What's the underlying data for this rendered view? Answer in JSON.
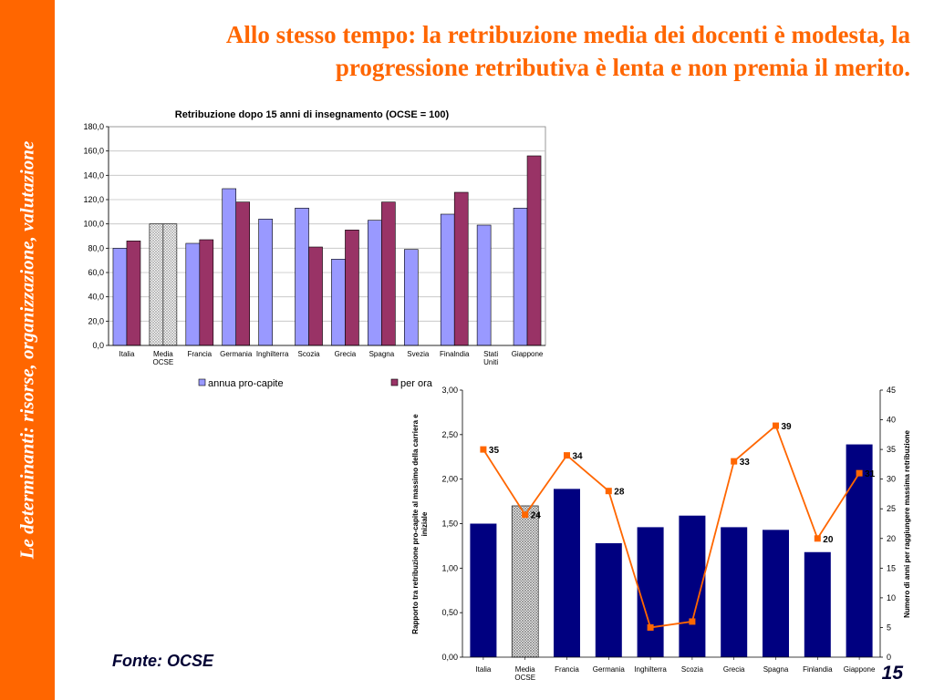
{
  "sidebar": {
    "text": "Le determinanti: risorse, organizzazione, valutazione"
  },
  "slide": {
    "title": "Allo stesso tempo: la retribuzione media dei docenti è modesta, la progressione retributiva è lenta e non premia il merito.",
    "source": "Fonte: OCSE",
    "page_number": "15"
  },
  "colors": {
    "sidebar": "#ff6600",
    "title": "#ff6600",
    "series_a": "#9999ff",
    "series_b": "#993366",
    "bar2": "#000080",
    "line2": "#ff6600"
  },
  "chart_data": [
    {
      "type": "bar",
      "title": "Retribuzione dopo 15 anni di insegnamento (OCSE = 100)",
      "categories": [
        "Italia",
        "Media OCSE",
        "Francia",
        "Germania",
        "Inghilterra",
        "Scozia",
        "Grecia",
        "Spagna",
        "Svezia",
        "Finalndia",
        "Stati Uniti",
        "Giappone"
      ],
      "series": [
        {
          "name": "annua pro-capite",
          "values": [
            80,
            100,
            84,
            129,
            104,
            113,
            71,
            103,
            79,
            108,
            99,
            113
          ]
        },
        {
          "name": "per ora",
          "values": [
            86,
            100,
            87,
            118,
            null,
            81,
            95,
            118,
            null,
            126,
            null,
            156
          ]
        }
      ],
      "yticks": [
        "0,0",
        "20,0",
        "40,0",
        "60,0",
        "80,0",
        "100,0",
        "120,0",
        "140,0",
        "160,0",
        "180,0"
      ],
      "ylim": [
        0,
        180
      ],
      "grid": true,
      "legend": "bottom",
      "highlight_category": "Media OCSE"
    },
    {
      "type": "bar",
      "categories": [
        "Italia",
        "Media OCSE",
        "Francia",
        "Germania",
        "Inghilterra",
        "Scozia",
        "Grecia",
        "Spagna",
        "Finlandia",
        "Giappone"
      ],
      "bars": {
        "values": [
          1.5,
          1.7,
          1.89,
          1.28,
          1.46,
          1.59,
          1.46,
          1.43,
          1.18,
          2.39
        ]
      },
      "line": {
        "values": [
          35,
          24,
          34,
          28,
          5,
          6,
          33,
          39,
          20,
          31
        ],
        "labels": [
          "35",
          "24",
          "34",
          "28",
          "",
          "",
          "33",
          "39",
          "20",
          "31"
        ]
      },
      "ylabel_left": "Rapporto tra retribuzione pro-capite al massimo della carriera e iniziale",
      "ylabel_right": "Numero di anni per raggiungere massima retribuzione",
      "yticks_left": [
        "0,00",
        "0,50",
        "1,00",
        "1,50",
        "2,00",
        "2,50",
        "3,00"
      ],
      "yticks_right": [
        "0",
        "5",
        "10",
        "15",
        "20",
        "25",
        "30",
        "35",
        "40",
        "45"
      ],
      "ylim_left": [
        0,
        3
      ],
      "ylim_right": [
        0,
        45
      ],
      "highlight_category": "Media OCSE"
    }
  ]
}
